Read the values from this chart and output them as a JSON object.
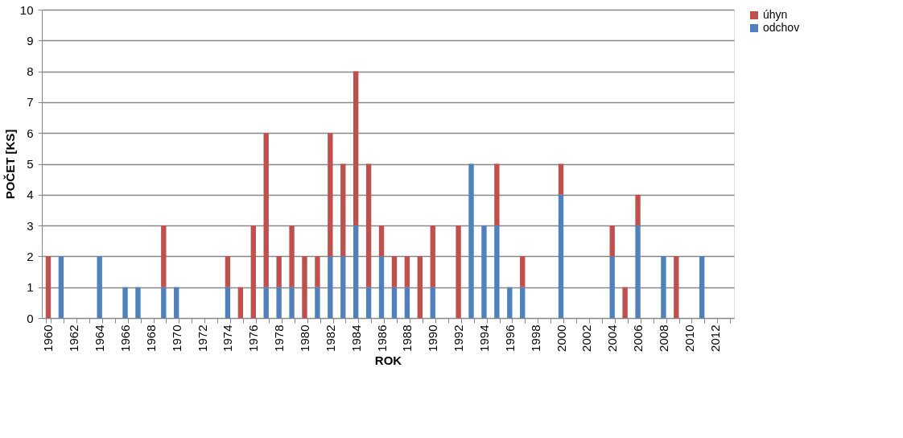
{
  "chart_data": {
    "type": "bar",
    "stacked": true,
    "xlabel": "ROK",
    "ylabel": "POČET [KS]",
    "categories": [
      "1960",
      null,
      "1962",
      null,
      "1964",
      null,
      "1966",
      null,
      "1968",
      null,
      "1970",
      null,
      "1972",
      null,
      "1974",
      null,
      "1976",
      null,
      "1978",
      null,
      "1980",
      null,
      "1982",
      null,
      "1984",
      null,
      "1986",
      null,
      "1988",
      null,
      "1990",
      null,
      "1992",
      null,
      "1994",
      null,
      "1996",
      null,
      "1998",
      null,
      "2000",
      null,
      "2002",
      null,
      "2004",
      null,
      "2006",
      null,
      "2008",
      null,
      "2010",
      null,
      "2012",
      null
    ],
    "series": [
      {
        "name": "odchov",
        "color": "#4f81bd",
        "values": [
          0,
          2,
          0,
          0,
          2,
          0,
          1,
          1,
          0,
          1,
          1,
          0,
          0,
          0,
          1,
          0,
          0,
          1,
          1,
          1,
          0,
          1,
          2,
          2,
          3,
          1,
          2,
          1,
          1,
          0,
          1,
          0,
          0,
          5,
          3,
          3,
          1,
          1,
          0,
          0,
          4,
          0,
          0,
          0,
          2,
          0,
          3,
          0,
          2,
          0,
          0,
          2,
          0,
          0
        ]
      },
      {
        "name": "úhyn",
        "color": "#c0504d",
        "values": [
          2,
          0,
          0,
          0,
          0,
          0,
          0,
          0,
          0,
          2,
          0,
          0,
          0,
          0,
          1,
          1,
          3,
          5,
          1,
          2,
          2,
          1,
          4,
          3,
          5,
          4,
          1,
          1,
          1,
          2,
          2,
          0,
          3,
          0,
          0,
          2,
          0,
          1,
          0,
          0,
          1,
          0,
          0,
          0,
          1,
          1,
          1,
          0,
          0,
          2,
          0,
          0,
          0,
          0
        ]
      }
    ],
    "ylim": [
      0,
      10
    ],
    "yticks": [
      0,
      1,
      2,
      3,
      4,
      5,
      6,
      7,
      8,
      9,
      10
    ],
    "grid": "y",
    "legend": "right"
  }
}
